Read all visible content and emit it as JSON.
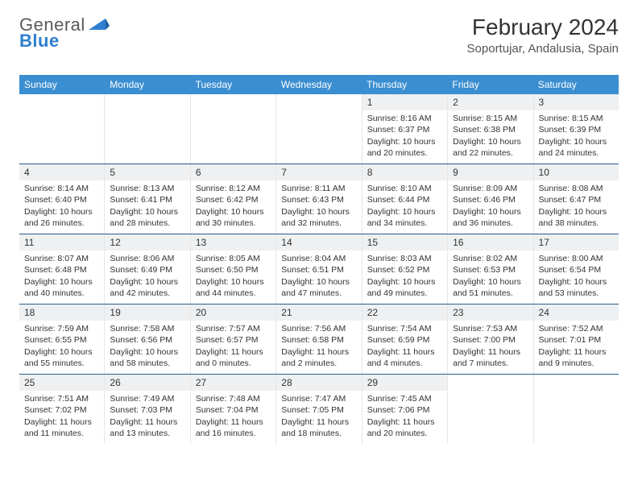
{
  "logo": {
    "text1": "General",
    "text2": "Blue"
  },
  "title": "February 2024",
  "location": "Soportujar, Andalusia, Spain",
  "colors": {
    "header_bg": "#3b8ed0",
    "header_text": "#ffffff",
    "row_border": "#2b5d8a",
    "day_shade": "#eef0f2",
    "body_text": "#333333",
    "page_bg": "#ffffff"
  },
  "typography": {
    "title_fontsize": 28,
    "location_fontsize": 15,
    "header_cell_fontsize": 12,
    "cell_fontsize": 10.5,
    "daynum_fontsize": 12
  },
  "layout": {
    "columns": 7,
    "rows": 5,
    "cell_min_height": 86
  },
  "weekdays": [
    "Sunday",
    "Monday",
    "Tuesday",
    "Wednesday",
    "Thursday",
    "Friday",
    "Saturday"
  ],
  "leading_blanks": 4,
  "days": [
    {
      "n": 1,
      "sunrise": "8:16 AM",
      "sunset": "6:37 PM",
      "day_h": 10,
      "day_m": 20
    },
    {
      "n": 2,
      "sunrise": "8:15 AM",
      "sunset": "6:38 PM",
      "day_h": 10,
      "day_m": 22
    },
    {
      "n": 3,
      "sunrise": "8:15 AM",
      "sunset": "6:39 PM",
      "day_h": 10,
      "day_m": 24
    },
    {
      "n": 4,
      "sunrise": "8:14 AM",
      "sunset": "6:40 PM",
      "day_h": 10,
      "day_m": 26
    },
    {
      "n": 5,
      "sunrise": "8:13 AM",
      "sunset": "6:41 PM",
      "day_h": 10,
      "day_m": 28
    },
    {
      "n": 6,
      "sunrise": "8:12 AM",
      "sunset": "6:42 PM",
      "day_h": 10,
      "day_m": 30
    },
    {
      "n": 7,
      "sunrise": "8:11 AM",
      "sunset": "6:43 PM",
      "day_h": 10,
      "day_m": 32
    },
    {
      "n": 8,
      "sunrise": "8:10 AM",
      "sunset": "6:44 PM",
      "day_h": 10,
      "day_m": 34
    },
    {
      "n": 9,
      "sunrise": "8:09 AM",
      "sunset": "6:46 PM",
      "day_h": 10,
      "day_m": 36
    },
    {
      "n": 10,
      "sunrise": "8:08 AM",
      "sunset": "6:47 PM",
      "day_h": 10,
      "day_m": 38
    },
    {
      "n": 11,
      "sunrise": "8:07 AM",
      "sunset": "6:48 PM",
      "day_h": 10,
      "day_m": 40
    },
    {
      "n": 12,
      "sunrise": "8:06 AM",
      "sunset": "6:49 PM",
      "day_h": 10,
      "day_m": 42
    },
    {
      "n": 13,
      "sunrise": "8:05 AM",
      "sunset": "6:50 PM",
      "day_h": 10,
      "day_m": 44
    },
    {
      "n": 14,
      "sunrise": "8:04 AM",
      "sunset": "6:51 PM",
      "day_h": 10,
      "day_m": 47
    },
    {
      "n": 15,
      "sunrise": "8:03 AM",
      "sunset": "6:52 PM",
      "day_h": 10,
      "day_m": 49
    },
    {
      "n": 16,
      "sunrise": "8:02 AM",
      "sunset": "6:53 PM",
      "day_h": 10,
      "day_m": 51
    },
    {
      "n": 17,
      "sunrise": "8:00 AM",
      "sunset": "6:54 PM",
      "day_h": 10,
      "day_m": 53
    },
    {
      "n": 18,
      "sunrise": "7:59 AM",
      "sunset": "6:55 PM",
      "day_h": 10,
      "day_m": 55
    },
    {
      "n": 19,
      "sunrise": "7:58 AM",
      "sunset": "6:56 PM",
      "day_h": 10,
      "day_m": 58
    },
    {
      "n": 20,
      "sunrise": "7:57 AM",
      "sunset": "6:57 PM",
      "day_h": 11,
      "day_m": 0
    },
    {
      "n": 21,
      "sunrise": "7:56 AM",
      "sunset": "6:58 PM",
      "day_h": 11,
      "day_m": 2
    },
    {
      "n": 22,
      "sunrise": "7:54 AM",
      "sunset": "6:59 PM",
      "day_h": 11,
      "day_m": 4
    },
    {
      "n": 23,
      "sunrise": "7:53 AM",
      "sunset": "7:00 PM",
      "day_h": 11,
      "day_m": 7
    },
    {
      "n": 24,
      "sunrise": "7:52 AM",
      "sunset": "7:01 PM",
      "day_h": 11,
      "day_m": 9
    },
    {
      "n": 25,
      "sunrise": "7:51 AM",
      "sunset": "7:02 PM",
      "day_h": 11,
      "day_m": 11
    },
    {
      "n": 26,
      "sunrise": "7:49 AM",
      "sunset": "7:03 PM",
      "day_h": 11,
      "day_m": 13
    },
    {
      "n": 27,
      "sunrise": "7:48 AM",
      "sunset": "7:04 PM",
      "day_h": 11,
      "day_m": 16
    },
    {
      "n": 28,
      "sunrise": "7:47 AM",
      "sunset": "7:05 PM",
      "day_h": 11,
      "day_m": 18
    },
    {
      "n": 29,
      "sunrise": "7:45 AM",
      "sunset": "7:06 PM",
      "day_h": 11,
      "day_m": 20
    }
  ],
  "labels": {
    "sunrise": "Sunrise: ",
    "sunset": "Sunset: ",
    "daylight": "Daylight: ",
    "hours": " hours",
    "and": "and ",
    "minutes": " minutes."
  }
}
